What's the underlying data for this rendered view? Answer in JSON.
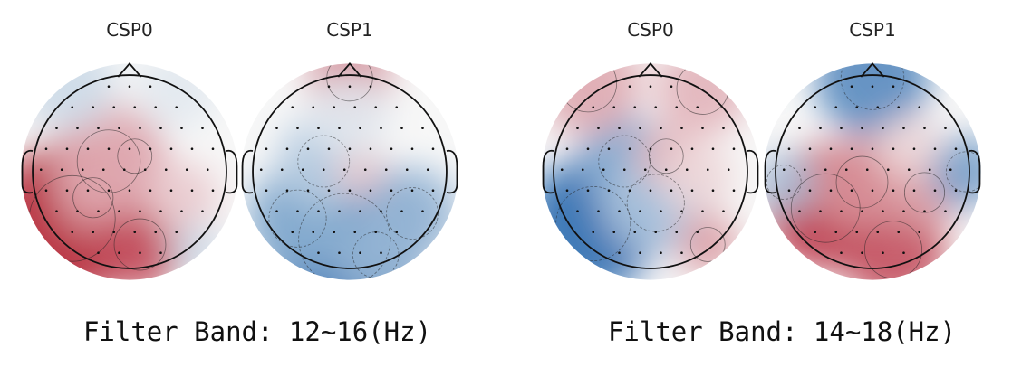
{
  "panels": [
    {
      "band_label": "Filter Band: 12~16(Hz)",
      "maps": [
        {
          "title": "CSP0",
          "blobs": [
            {
              "u": -0.55,
              "v": 0.45,
              "r": 0.75,
              "w": 0.95
            },
            {
              "u": -0.35,
              "v": 0.25,
              "r": 0.35,
              "w": 0.5
            },
            {
              "u": 0.1,
              "v": 0.7,
              "r": 0.45,
              "w": 0.75
            },
            {
              "u": 0.05,
              "v": -0.15,
              "r": 0.3,
              "w": 0.35
            },
            {
              "u": -0.2,
              "v": -0.1,
              "r": 0.55,
              "w": 0.35
            },
            {
              "u": 0.5,
              "v": 0.25,
              "r": 0.35,
              "w": 0.2
            },
            {
              "u": 0.65,
              "v": 0.75,
              "r": 0.25,
              "w": -0.2
            },
            {
              "u": -0.6,
              "v": -0.85,
              "r": 0.45,
              "w": -0.2
            },
            {
              "u": 0.45,
              "v": -0.8,
              "r": 0.4,
              "w": -0.1
            }
          ]
        },
        {
          "title": "CSP1",
          "blobs": [
            {
              "u": -0.05,
              "v": 0.65,
              "r": 0.8,
              "w": -0.85
            },
            {
              "u": 0.25,
              "v": 0.8,
              "r": 0.4,
              "w": -0.45
            },
            {
              "u": -0.5,
              "v": 0.45,
              "r": 0.5,
              "w": -0.5
            },
            {
              "u": 0.6,
              "v": 0.4,
              "r": 0.45,
              "w": -0.45
            },
            {
              "u": -0.25,
              "v": -0.1,
              "r": 0.45,
              "w": -0.3
            },
            {
              "u": 0.1,
              "v": 0.0,
              "r": 0.25,
              "w": 0.2
            },
            {
              "u": 0.0,
              "v": -0.9,
              "r": 0.4,
              "w": 0.55
            },
            {
              "u": 0.0,
              "v": -0.55,
              "r": 0.4,
              "w": -0.1
            }
          ]
        }
      ]
    },
    {
      "band_label": "Filter Band: 14~18(Hz)",
      "maps": [
        {
          "title": "CSP0",
          "blobs": [
            {
              "u": -0.55,
              "v": 0.5,
              "r": 0.65,
              "w": -0.95
            },
            {
              "u": -0.25,
              "v": -0.1,
              "r": 0.45,
              "w": -0.55
            },
            {
              "u": 0.05,
              "v": 0.3,
              "r": 0.5,
              "w": -0.35
            },
            {
              "u": 0.15,
              "v": -0.15,
              "r": 0.3,
              "w": 0.3
            },
            {
              "u": 0.45,
              "v": 0.05,
              "r": 0.35,
              "w": 0.15
            },
            {
              "u": 0.55,
              "v": 0.7,
              "r": 0.3,
              "w": 0.4
            },
            {
              "u": -0.6,
              "v": -0.85,
              "r": 0.5,
              "w": 0.35
            },
            {
              "u": 0.5,
              "v": -0.8,
              "r": 0.45,
              "w": 0.3
            }
          ]
        },
        {
          "title": "CSP1",
          "blobs": [
            {
              "u": -0.45,
              "v": 0.35,
              "r": 0.6,
              "w": 0.85
            },
            {
              "u": 0.2,
              "v": 0.75,
              "r": 0.5,
              "w": 0.75
            },
            {
              "u": -0.1,
              "v": 0.1,
              "r": 0.45,
              "w": 0.45
            },
            {
              "u": 0.5,
              "v": 0.2,
              "r": 0.35,
              "w": 0.4
            },
            {
              "u": 0.0,
              "v": -0.9,
              "r": 0.55,
              "w": -0.75
            },
            {
              "u": 0.9,
              "v": 0.0,
              "r": 0.35,
              "w": -0.6
            },
            {
              "u": -0.85,
              "v": 0.1,
              "r": 0.3,
              "w": -0.35
            },
            {
              "u": 0.35,
              "v": -0.25,
              "r": 0.3,
              "w": 0.15
            }
          ]
        }
      ]
    }
  ],
  "colors": {
    "positive": "#b2182b",
    "neutral": "#f7f7f7",
    "negative": "#2166ac",
    "outline": "#111111",
    "sensor": "#111111"
  }
}
